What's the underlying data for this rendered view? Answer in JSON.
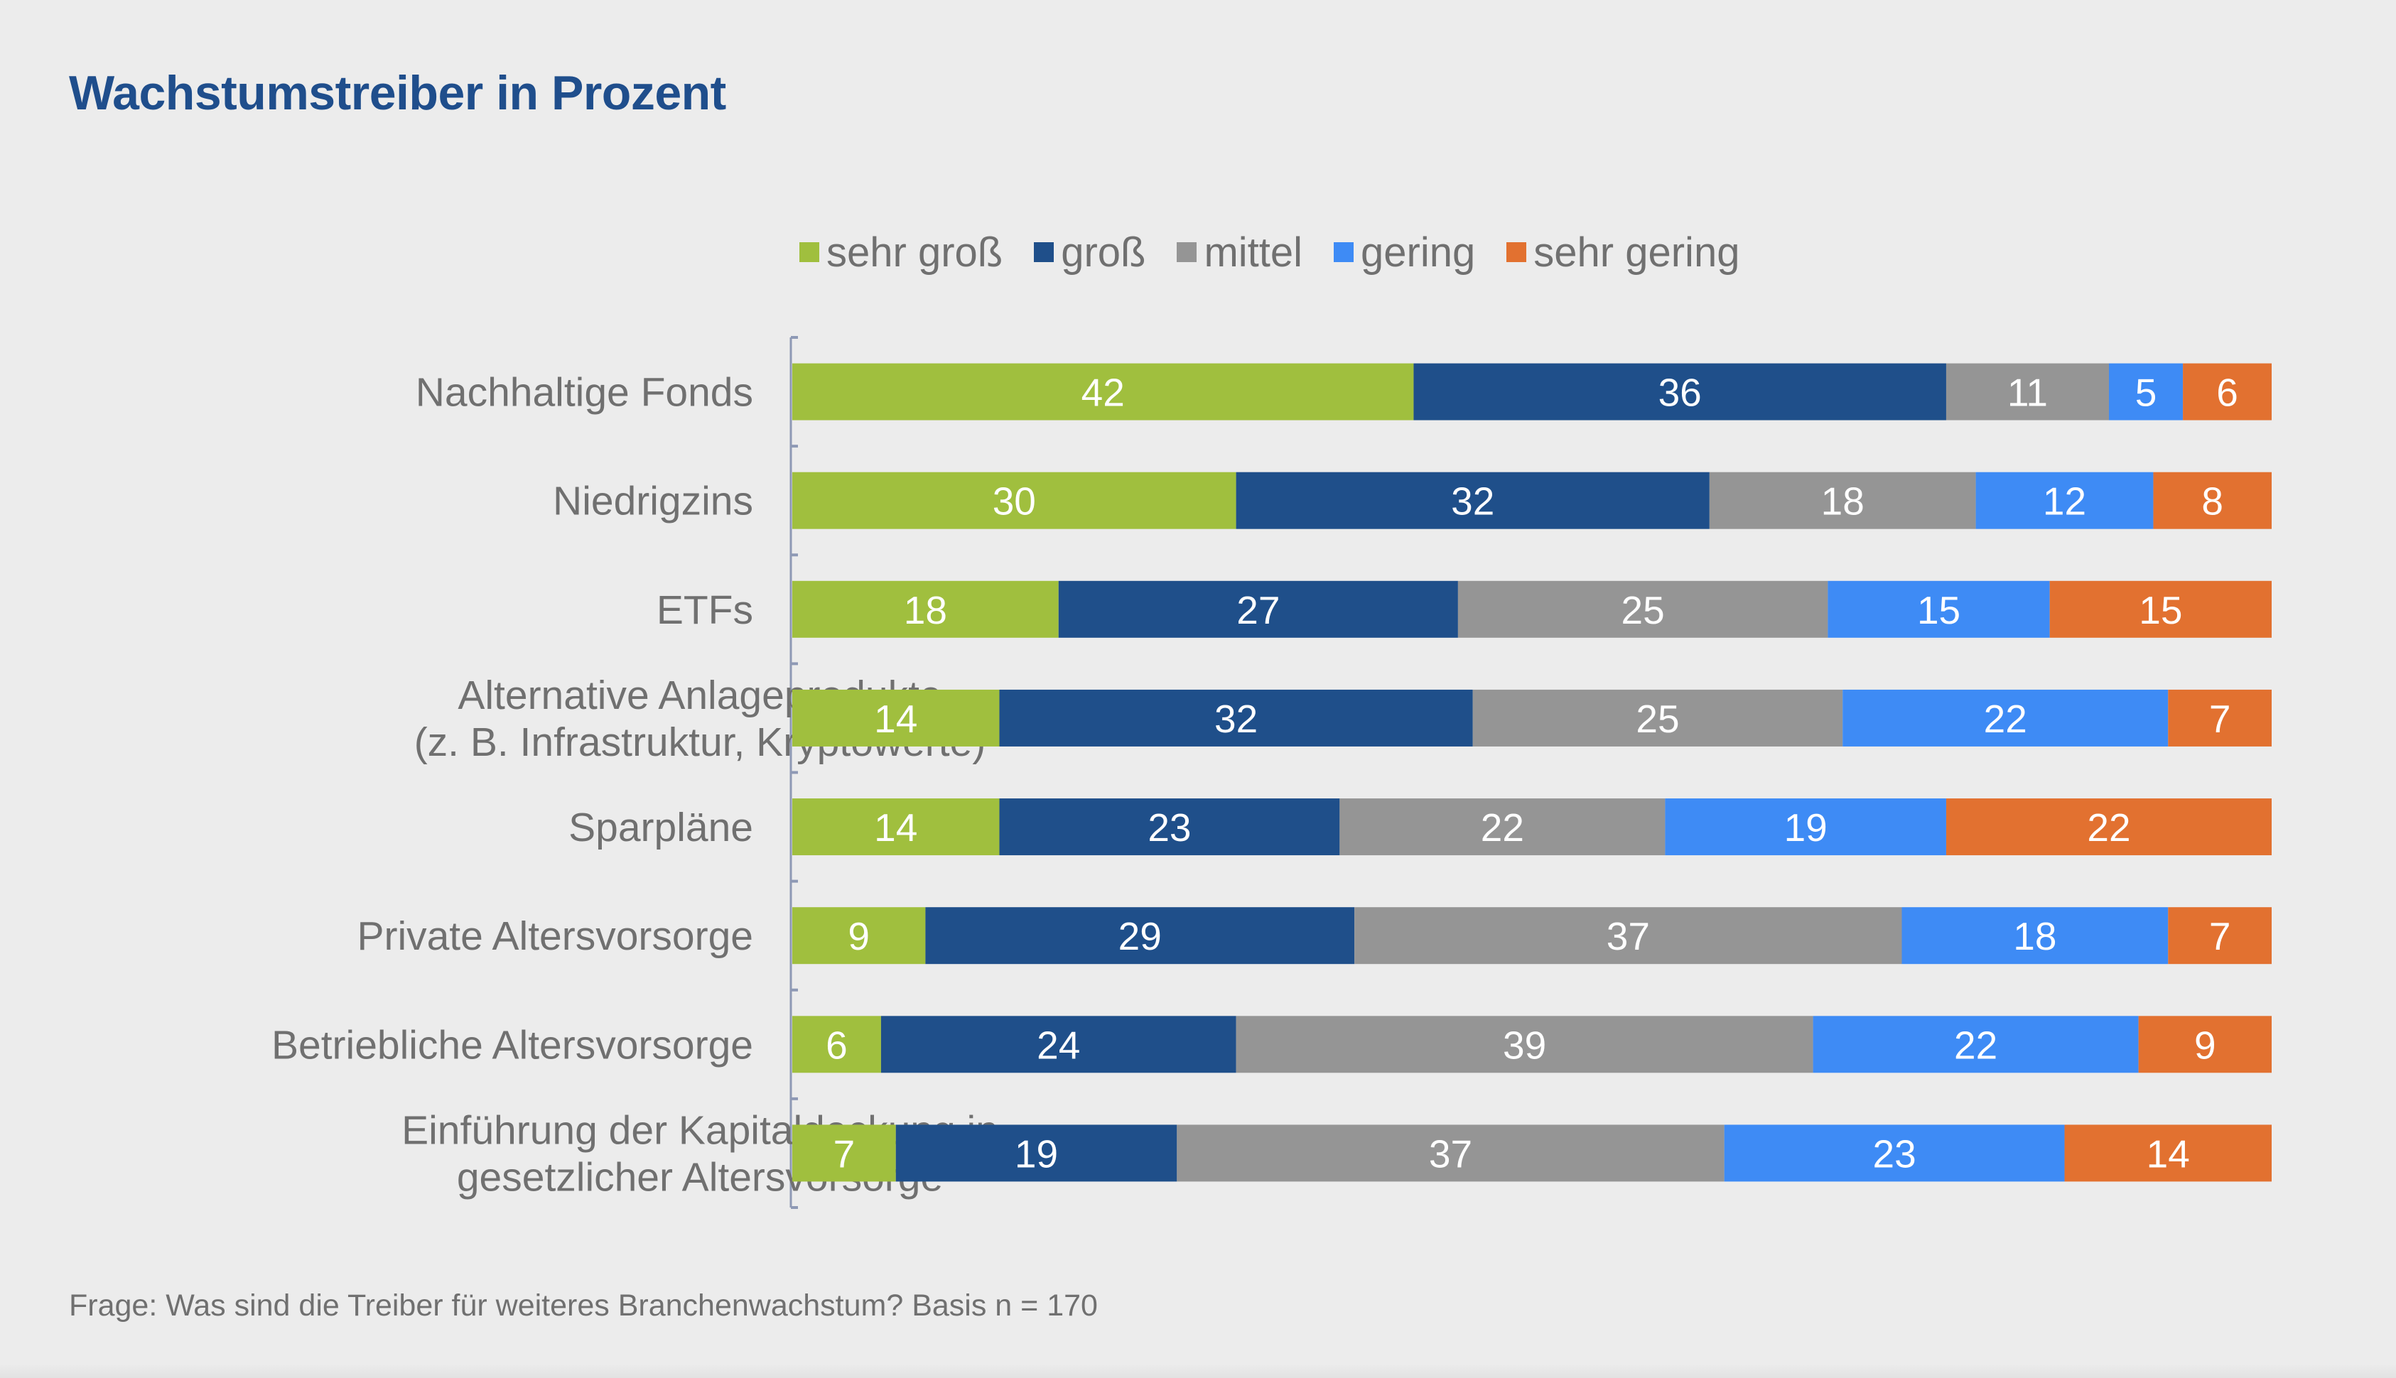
{
  "title": "Wachstumstreiber in Prozent",
  "footer": "Frage: Was sind die Treiber für weiteres Branchenwachstum? Basis n = 170",
  "chart_data": {
    "type": "bar",
    "orientation": "horizontal",
    "stacked": true,
    "title": "Wachstumstreiber in Prozent",
    "xlabel": "",
    "ylabel": "",
    "xlim": [
      0,
      100
    ],
    "grid": false,
    "legend_position": "top",
    "categories": [
      [
        "Nachhaltige Fonds"
      ],
      [
        "Niedrigzins"
      ],
      [
        "ETFs"
      ],
      [
        "Alternative Anlageprodukte",
        "(z. B. Infrastruktur, Kryptowerte)"
      ],
      [
        "Sparpläne"
      ],
      [
        "Private Altersvorsorge"
      ],
      [
        "Betriebliche Altersvorsorge"
      ],
      [
        "Einführung der Kapitaldeckung in",
        "gesetzlicher Altersvorsorge"
      ]
    ],
    "series": [
      {
        "name": "sehr groß",
        "color": "#a0bf3e",
        "values": [
          42,
          30,
          18,
          14,
          14,
          9,
          6,
          7
        ]
      },
      {
        "name": "groß",
        "color": "#1f4f8a",
        "values": [
          36,
          32,
          27,
          32,
          23,
          29,
          24,
          19
        ]
      },
      {
        "name": "mittel",
        "color": "#959595",
        "values": [
          11,
          18,
          25,
          25,
          22,
          37,
          39,
          37
        ]
      },
      {
        "name": "gering",
        "color": "#3e8bf5",
        "values": [
          5,
          12,
          15,
          22,
          19,
          18,
          22,
          23
        ]
      },
      {
        "name": "sehr gering",
        "color": "#e27130",
        "values": [
          6,
          8,
          15,
          7,
          22,
          7,
          9,
          14
        ]
      }
    ],
    "data_labels": true,
    "footnote": "Frage: Was sind die Treiber für weiteres Branchenwachstum? Basis n = 170"
  }
}
